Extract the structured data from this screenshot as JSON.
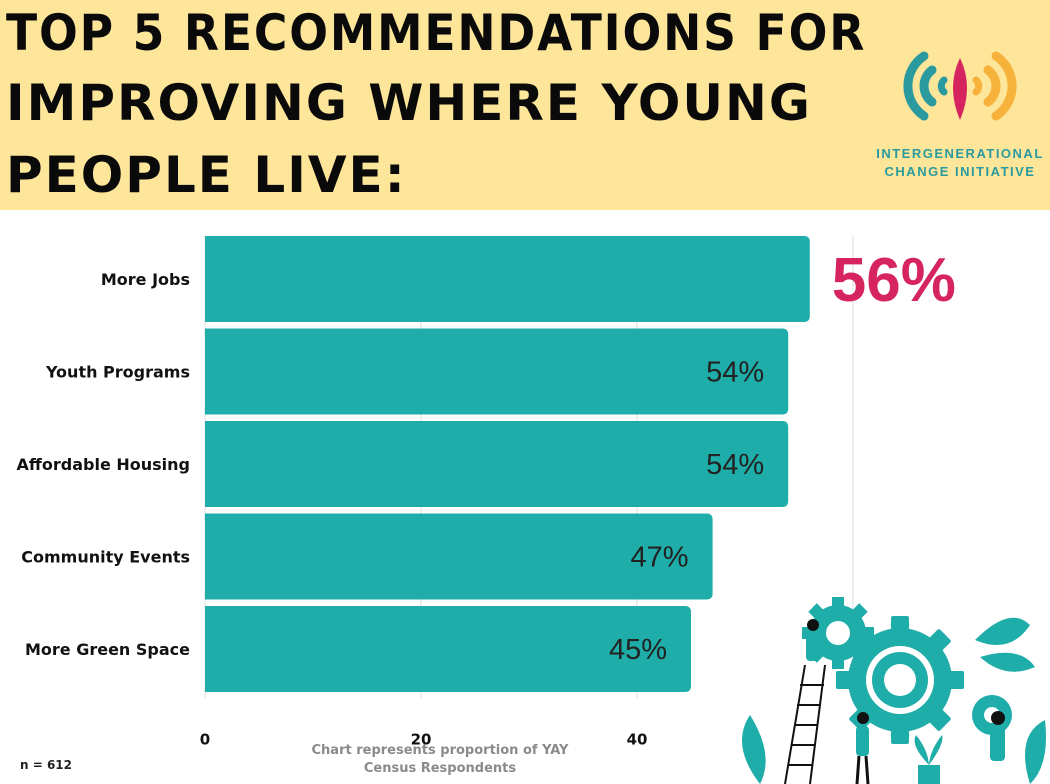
{
  "header": {
    "title_lines": [
      "TOP 5 RECOMMENDATIONS FOR",
      "IMPROVING WHERE YOUNG",
      "PEOPLE LIVE:"
    ],
    "logo": {
      "icon": "sound-wave-logo-icon",
      "text_lines": [
        "INTERGENERATIONAL",
        "CHANGE INITIATIVE"
      ]
    }
  },
  "chart_data": {
    "type": "bar",
    "orientation": "horizontal",
    "categories": [
      "More Jobs",
      "Youth Programs",
      "Affordable Housing",
      "Community Events",
      "More Green Space"
    ],
    "values": [
      56,
      54,
      54,
      47,
      45
    ],
    "value_labels": [
      "56%",
      "54%",
      "54%",
      "47%",
      "45%"
    ],
    "xlim": [
      0,
      60
    ],
    "x_ticks": [
      0,
      20,
      40
    ],
    "grid": true,
    "highlight_index": 0
  },
  "caption_lines": [
    "Chart represents proportion of YAY",
    "Census Respondents"
  ],
  "sample_size": "n = 612",
  "colors": {
    "header_bg": "#fde59a",
    "bar": "#1fada9",
    "highlight_value": "#d6245e",
    "logo_teal": "#2b9a9e",
    "logo_pink": "#d6245e",
    "logo_orange": "#f7b23b",
    "caption": "#8a8a8a",
    "grid": "#dddddd"
  },
  "illustration": {
    "icon": "gears-teamwork-illustration-icon"
  }
}
